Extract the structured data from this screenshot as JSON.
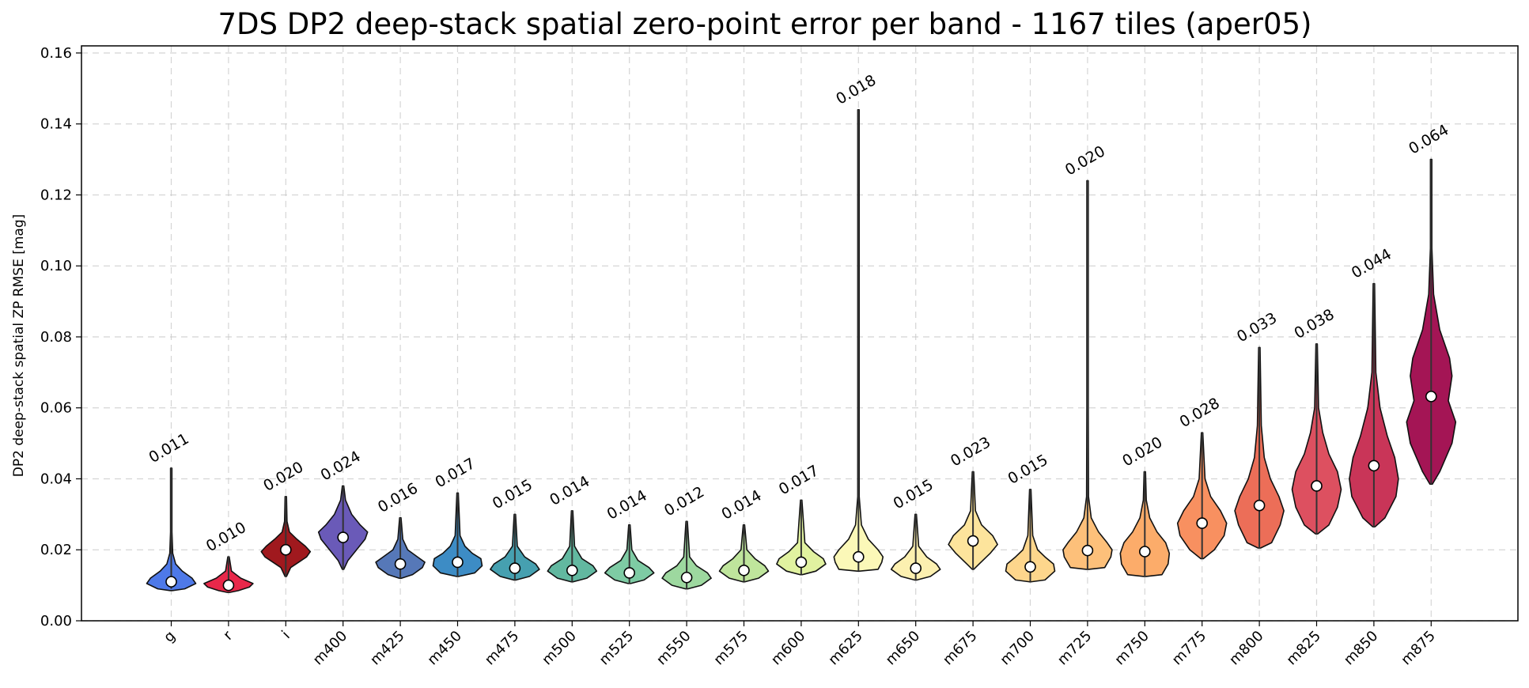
{
  "chart_data": {
    "type": "violin",
    "title": "7DS DP2 deep-stack spatial zero-point error per band  -  1167 tiles  (aper05)",
    "ylabel": "DP2 deep-stack spatial ZP RMSE [mag]",
    "xlabel": "",
    "ylim": [
      0,
      0.162
    ],
    "yticks": [
      "0.00",
      "0.02",
      "0.04",
      "0.06",
      "0.08",
      "0.10",
      "0.12",
      "0.14",
      "0.16"
    ],
    "grid": true,
    "series": [
      {
        "band": "g",
        "label": "0.011",
        "color": "#4e79e8",
        "min": 0.009,
        "max": 0.043,
        "median": 0.011,
        "shape": [
          [
            0.0085,
            0.05
          ],
          [
            0.009,
            0.55
          ],
          [
            0.0105,
            1.0
          ],
          [
            0.012,
            0.85
          ],
          [
            0.014,
            0.45
          ],
          [
            0.016,
            0.18
          ],
          [
            0.019,
            0.06
          ],
          [
            0.025,
            0.02
          ],
          [
            0.043,
            0.01
          ]
        ]
      },
      {
        "band": "r",
        "label": "0.010",
        "color": "#e8284a",
        "min": 0.0085,
        "max": 0.018,
        "median": 0.01,
        "shape": [
          [
            0.008,
            0.05
          ],
          [
            0.0085,
            0.4
          ],
          [
            0.0095,
            0.85
          ],
          [
            0.0105,
            1.0
          ],
          [
            0.012,
            0.5
          ],
          [
            0.014,
            0.12
          ],
          [
            0.018,
            0.02
          ]
        ]
      },
      {
        "band": "i",
        "label": "0.020",
        "color": "#a0191e",
        "min": 0.0125,
        "max": 0.035,
        "median": 0.02,
        "shape": [
          [
            0.0125,
            0.03
          ],
          [
            0.015,
            0.2
          ],
          [
            0.018,
            0.85
          ],
          [
            0.0195,
            1.0
          ],
          [
            0.021,
            0.8
          ],
          [
            0.023,
            0.45
          ],
          [
            0.025,
            0.15
          ],
          [
            0.028,
            0.05
          ],
          [
            0.035,
            0.01
          ]
        ]
      },
      {
        "band": "m400",
        "label": "0.024",
        "color": "#6a5ab8",
        "min": 0.0145,
        "max": 0.038,
        "median": 0.0235,
        "shape": [
          [
            0.0145,
            0.03
          ],
          [
            0.017,
            0.2
          ],
          [
            0.02,
            0.55
          ],
          [
            0.023,
            0.9
          ],
          [
            0.025,
            1.0
          ],
          [
            0.027,
            0.7
          ],
          [
            0.03,
            0.35
          ],
          [
            0.034,
            0.1
          ],
          [
            0.038,
            0.01
          ]
        ]
      },
      {
        "band": "m425",
        "label": "0.016",
        "color": "#5678b8",
        "min": 0.012,
        "max": 0.029,
        "median": 0.016,
        "shape": [
          [
            0.012,
            0.05
          ],
          [
            0.013,
            0.5
          ],
          [
            0.015,
            0.9
          ],
          [
            0.0165,
            1.0
          ],
          [
            0.018,
            0.7
          ],
          [
            0.02,
            0.3
          ],
          [
            0.023,
            0.1
          ],
          [
            0.029,
            0.01
          ]
        ]
      },
      {
        "band": "m450",
        "label": "0.017",
        "color": "#3d8cc5",
        "min": 0.0125,
        "max": 0.036,
        "median": 0.0165,
        "shape": [
          [
            0.0125,
            0.05
          ],
          [
            0.0135,
            0.7
          ],
          [
            0.0155,
            1.0
          ],
          [
            0.0175,
            0.95
          ],
          [
            0.019,
            0.6
          ],
          [
            0.021,
            0.3
          ],
          [
            0.024,
            0.1
          ],
          [
            0.036,
            0.01
          ]
        ]
      },
      {
        "band": "m475",
        "label": "0.015",
        "color": "#46a0b0",
        "min": 0.0115,
        "max": 0.03,
        "median": 0.0148,
        "shape": [
          [
            0.0115,
            0.05
          ],
          [
            0.0125,
            0.6
          ],
          [
            0.0145,
            1.0
          ],
          [
            0.016,
            0.85
          ],
          [
            0.018,
            0.4
          ],
          [
            0.021,
            0.1
          ],
          [
            0.03,
            0.01
          ]
        ]
      },
      {
        "band": "m500",
        "label": "0.014",
        "color": "#62b8a0",
        "min": 0.011,
        "max": 0.031,
        "median": 0.0142,
        "shape": [
          [
            0.011,
            0.05
          ],
          [
            0.012,
            0.6
          ],
          [
            0.014,
            1.0
          ],
          [
            0.0155,
            0.85
          ],
          [
            0.0175,
            0.4
          ],
          [
            0.021,
            0.1
          ],
          [
            0.031,
            0.01
          ]
        ]
      },
      {
        "band": "m525",
        "label": "0.014",
        "color": "#7ecba4",
        "min": 0.0105,
        "max": 0.027,
        "median": 0.0135,
        "shape": [
          [
            0.0105,
            0.05
          ],
          [
            0.0115,
            0.6
          ],
          [
            0.0135,
            1.0
          ],
          [
            0.015,
            0.8
          ],
          [
            0.017,
            0.35
          ],
          [
            0.02,
            0.1
          ],
          [
            0.027,
            0.01
          ]
        ]
      },
      {
        "band": "m550",
        "label": "0.012",
        "color": "#9dd89f",
        "min": 0.009,
        "max": 0.028,
        "median": 0.0122,
        "shape": [
          [
            0.009,
            0.05
          ],
          [
            0.01,
            0.6
          ],
          [
            0.012,
            1.0
          ],
          [
            0.0135,
            0.85
          ],
          [
            0.0155,
            0.4
          ],
          [
            0.018,
            0.12
          ],
          [
            0.028,
            0.01
          ]
        ]
      },
      {
        "band": "m575",
        "label": "0.014",
        "color": "#bfe59c",
        "min": 0.011,
        "max": 0.027,
        "median": 0.0142,
        "shape": [
          [
            0.011,
            0.05
          ],
          [
            0.012,
            0.6
          ],
          [
            0.014,
            1.0
          ],
          [
            0.0155,
            0.85
          ],
          [
            0.0175,
            0.45
          ],
          [
            0.02,
            0.12
          ],
          [
            0.027,
            0.01
          ]
        ]
      },
      {
        "band": "m600",
        "label": "0.017",
        "color": "#e1f2a0",
        "min": 0.013,
        "max": 0.034,
        "median": 0.0165,
        "shape": [
          [
            0.013,
            0.05
          ],
          [
            0.014,
            0.6
          ],
          [
            0.016,
            1.0
          ],
          [
            0.0175,
            0.9
          ],
          [
            0.0195,
            0.5
          ],
          [
            0.022,
            0.15
          ],
          [
            0.034,
            0.01
          ]
        ]
      },
      {
        "band": "m625",
        "label": "0.018",
        "color": "#fbf8b8",
        "min": 0.014,
        "max": 0.144,
        "median": 0.018,
        "shape": [
          [
            0.014,
            0.05
          ],
          [
            0.0145,
            0.8
          ],
          [
            0.0165,
            0.95
          ],
          [
            0.018,
            1.0
          ],
          [
            0.02,
            0.8
          ],
          [
            0.023,
            0.4
          ],
          [
            0.027,
            0.12
          ],
          [
            0.035,
            0.03
          ],
          [
            0.06,
            0.01
          ],
          [
            0.144,
            0.005
          ]
        ]
      },
      {
        "band": "m650",
        "label": "0.015",
        "color": "#fcf0b0",
        "min": 0.0115,
        "max": 0.03,
        "median": 0.0148,
        "shape": [
          [
            0.0115,
            0.05
          ],
          [
            0.0125,
            0.6
          ],
          [
            0.0145,
            1.0
          ],
          [
            0.016,
            0.85
          ],
          [
            0.018,
            0.45
          ],
          [
            0.021,
            0.12
          ],
          [
            0.03,
            0.01
          ]
        ]
      },
      {
        "band": "m675",
        "label": "0.023",
        "color": "#fde49c",
        "min": 0.0145,
        "max": 0.042,
        "median": 0.0225,
        "shape": [
          [
            0.0145,
            0.03
          ],
          [
            0.016,
            0.25
          ],
          [
            0.019,
            0.7
          ],
          [
            0.0215,
            1.0
          ],
          [
            0.024,
            0.8
          ],
          [
            0.027,
            0.35
          ],
          [
            0.031,
            0.1
          ],
          [
            0.042,
            0.01
          ]
        ]
      },
      {
        "band": "m700",
        "label": "0.015",
        "color": "#fdd68c",
        "min": 0.011,
        "max": 0.037,
        "median": 0.0152,
        "shape": [
          [
            0.011,
            0.05
          ],
          [
            0.0115,
            0.6
          ],
          [
            0.014,
            1.0
          ],
          [
            0.016,
            0.95
          ],
          [
            0.018,
            0.6
          ],
          [
            0.02,
            0.3
          ],
          [
            0.024,
            0.1
          ],
          [
            0.037,
            0.01
          ]
        ]
      },
      {
        "band": "m725",
        "label": "0.020",
        "color": "#fdc07a",
        "min": 0.0145,
        "max": 0.124,
        "median": 0.0198,
        "shape": [
          [
            0.0145,
            0.05
          ],
          [
            0.015,
            0.7
          ],
          [
            0.018,
            0.95
          ],
          [
            0.02,
            1.0
          ],
          [
            0.022,
            0.8
          ],
          [
            0.025,
            0.45
          ],
          [
            0.029,
            0.15
          ],
          [
            0.035,
            0.04
          ],
          [
            0.06,
            0.01
          ],
          [
            0.124,
            0.005
          ]
        ]
      },
      {
        "band": "m750",
        "label": "0.020",
        "color": "#fcac6a",
        "min": 0.0125,
        "max": 0.042,
        "median": 0.0195,
        "shape": [
          [
            0.0125,
            0.05
          ],
          [
            0.013,
            0.7
          ],
          [
            0.016,
            0.95
          ],
          [
            0.019,
            1.0
          ],
          [
            0.022,
            0.85
          ],
          [
            0.025,
            0.5
          ],
          [
            0.029,
            0.2
          ],
          [
            0.034,
            0.06
          ],
          [
            0.042,
            0.01
          ]
        ]
      },
      {
        "band": "m775",
        "label": "0.028",
        "color": "#f89060",
        "min": 0.0175,
        "max": 0.053,
        "median": 0.0275,
        "shape": [
          [
            0.0175,
            0.05
          ],
          [
            0.02,
            0.5
          ],
          [
            0.024,
            0.9
          ],
          [
            0.0275,
            1.0
          ],
          [
            0.031,
            0.75
          ],
          [
            0.035,
            0.35
          ],
          [
            0.04,
            0.12
          ],
          [
            0.053,
            0.01
          ]
        ]
      },
      {
        "band": "m800",
        "label": "0.033",
        "color": "#ec6e58",
        "min": 0.0205,
        "max": 0.077,
        "median": 0.0325,
        "shape": [
          [
            0.0205,
            0.05
          ],
          [
            0.022,
            0.5
          ],
          [
            0.027,
            0.85
          ],
          [
            0.031,
            1.0
          ],
          [
            0.035,
            0.8
          ],
          [
            0.04,
            0.45
          ],
          [
            0.046,
            0.2
          ],
          [
            0.055,
            0.08
          ],
          [
            0.077,
            0.01
          ]
        ]
      },
      {
        "band": "m825",
        "label": "0.038",
        "color": "#dd5060",
        "min": 0.0245,
        "max": 0.078,
        "median": 0.038,
        "shape": [
          [
            0.0245,
            0.05
          ],
          [
            0.027,
            0.5
          ],
          [
            0.032,
            0.85
          ],
          [
            0.037,
            1.0
          ],
          [
            0.042,
            0.85
          ],
          [
            0.047,
            0.5
          ],
          [
            0.053,
            0.25
          ],
          [
            0.06,
            0.08
          ],
          [
            0.078,
            0.01
          ]
        ]
      },
      {
        "band": "m850",
        "label": "0.044",
        "color": "#c93558",
        "min": 0.0265,
        "max": 0.095,
        "median": 0.0437,
        "shape": [
          [
            0.0265,
            0.05
          ],
          [
            0.029,
            0.45
          ],
          [
            0.035,
            0.9
          ],
          [
            0.04,
            1.0
          ],
          [
            0.046,
            0.85
          ],
          [
            0.052,
            0.55
          ],
          [
            0.06,
            0.25
          ],
          [
            0.07,
            0.08
          ],
          [
            0.095,
            0.01
          ]
        ]
      },
      {
        "band": "m875",
        "label": "0.064",
        "color": "#a41555",
        "min": 0.0385,
        "max": 0.13,
        "median": 0.0632,
        "shape": [
          [
            0.0385,
            0.05
          ],
          [
            0.042,
            0.35
          ],
          [
            0.05,
            0.85
          ],
          [
            0.056,
            1.0
          ],
          [
            0.062,
            0.7
          ],
          [
            0.069,
            0.85
          ],
          [
            0.074,
            0.75
          ],
          [
            0.082,
            0.35
          ],
          [
            0.092,
            0.1
          ],
          [
            0.105,
            0.03
          ],
          [
            0.13,
            0.01
          ]
        ]
      }
    ]
  }
}
